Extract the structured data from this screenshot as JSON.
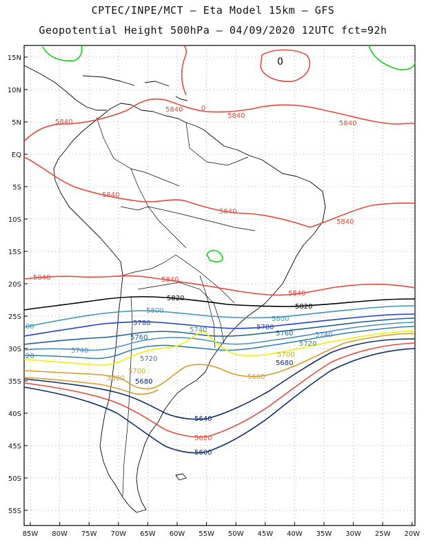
{
  "header": {
    "line1": "CPTEC/INPE/MCT –  Eta Model 15km – GFS",
    "line2": "Geopotential Height 500hPa – 04/09/2020 12UTC fct=92h"
  },
  "axes": {
    "lat_labels": [
      "15N",
      "10N",
      "5N",
      "EQ",
      "5S",
      "10S",
      "15S",
      "20S",
      "25S",
      "30S",
      "35S",
      "40S",
      "45S",
      "50S",
      "55S"
    ],
    "lon_labels": [
      "85W",
      "80W",
      "75W",
      "70W",
      "65W",
      "60W",
      "55W",
      "50W",
      "45W",
      "40W",
      "35W",
      "30W",
      "25W",
      "20W"
    ]
  },
  "colors": {
    "c5840": "#e8483c",
    "c5820": "#000000",
    "c5800": "#3c95b4",
    "c5780": "#1d3fd8",
    "c5760": "#1f5f8f",
    "c5740": "#4a8ec0",
    "c5720": "#2f7fae",
    "c5700": "#f0f000",
    "c5680": "#d99a2b",
    "c5660": "#d99a2b",
    "c5640": "#0e2a6e",
    "c5620": "#e8483c",
    "c5600": "#0e2a6e",
    "c5880": "#10d010"
  },
  "contour_labels": {
    "l5840_a": "5840",
    "l5840_b": "5840",
    "l5840_c": "5840",
    "l5840_d": "5840",
    "l5840_e": "5840",
    "l5840_f": "5840",
    "l5840_g": "5840",
    "l5840_h": "5840",
    "l5840_i": "5840",
    "l5840_j": "5840",
    "l0_a": "0",
    "l0_b": "0",
    "l5820": "5820",
    "l5820_b": "5820",
    "l5800_a": "5800",
    "l5800_b": "5800",
    "l00": "00",
    "l5780_a": "5780",
    "l5780_b": "5780",
    "l5760_a": "5760",
    "l5760_b": "5760",
    "l5740_a": "5740",
    "l5740_b": "5740",
    "l5740_c": "5740",
    "l20": "20",
    "l5720_a": "5720",
    "l5720_b": "5720",
    "l5700_a": "5700",
    "l5700_b": "5700",
    "l5680_a": "5680",
    "l5680_b": "5680",
    "l5660_a": "5660",
    "l5660_b": "5660",
    "l5640": "5640",
    "l5620": "5620",
    "l5600": "5600"
  }
}
